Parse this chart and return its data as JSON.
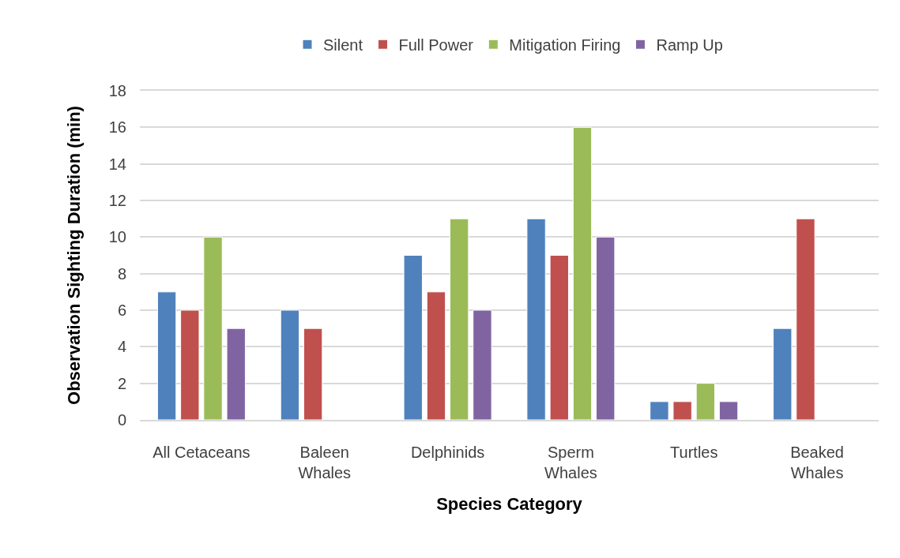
{
  "chart_data": {
    "type": "bar",
    "xlabel": "Species Category",
    "ylabel": "Observation Sighting Duration (min)",
    "categories": [
      "All Cetaceans",
      "Baleen\nWhales",
      "Delphinids",
      "Sperm\nWhales",
      "Turtles",
      "Beaked\nWhales"
    ],
    "series": [
      {
        "name": "Silent",
        "color": "#4f81bd",
        "values": [
          7,
          6,
          9,
          11,
          1,
          5
        ]
      },
      {
        "name": "Full Power",
        "color": "#c0504d",
        "values": [
          6,
          5,
          7,
          9,
          1,
          11
        ]
      },
      {
        "name": "Mitigation Firing",
        "color": "#9bbb59",
        "values": [
          10,
          null,
          11,
          16,
          2,
          null
        ]
      },
      {
        "name": "Ramp Up",
        "color": "#8064a2",
        "values": [
          5,
          null,
          6,
          10,
          1,
          null
        ]
      }
    ],
    "ylim": [
      0,
      18
    ],
    "yticks": [
      0,
      2,
      4,
      6,
      8,
      10,
      12,
      14,
      16,
      18
    ],
    "grid": "y",
    "legend": "top"
  }
}
